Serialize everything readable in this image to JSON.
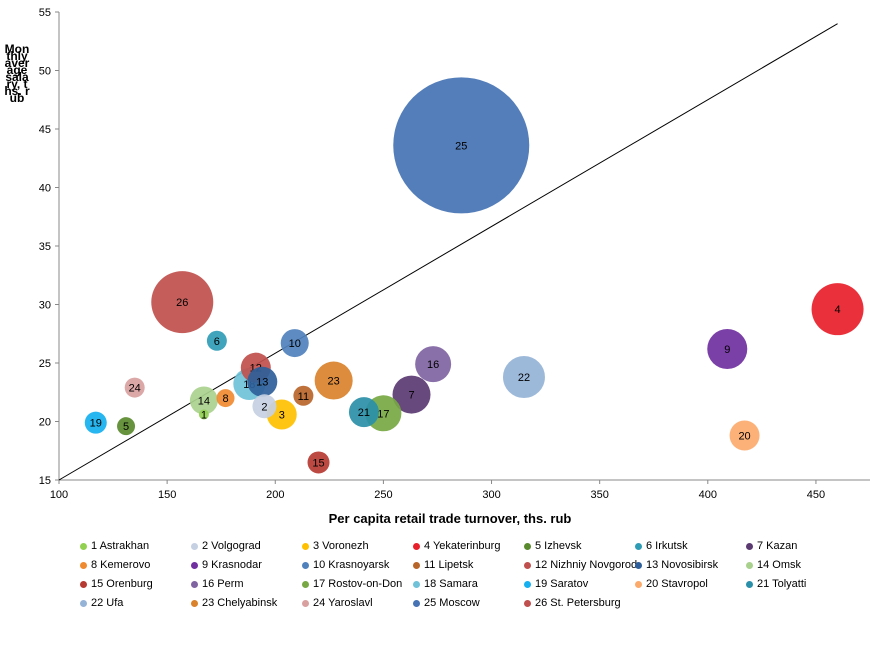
{
  "chart_data": {
    "type": "scatter",
    "title": "",
    "xlabel": "Per capita retail trade turnover, ths. rub",
    "ylabel": "Monthly average salary, ths. rub",
    "xlim": [
      100,
      475
    ],
    "ylim": [
      15,
      55
    ],
    "x_ticks": [
      "100",
      "150",
      "200",
      "250",
      "300",
      "350",
      "400",
      "450"
    ],
    "y_ticks": [
      "15",
      "20",
      "25",
      "30",
      "35",
      "40",
      "45",
      "50",
      "55"
    ],
    "reference_line": {
      "x": [
        100,
        460
      ],
      "y": [
        15,
        54
      ]
    },
    "points": [
      {
        "id": "1",
        "name": "1 Astrakhan",
        "x": 167,
        "y": 20.6,
        "r": 5,
        "color": "#92d050"
      },
      {
        "id": "2",
        "name": "2 Volgograd",
        "x": 195,
        "y": 21.3,
        "r": 12,
        "color": "#c5d0e2"
      },
      {
        "id": "3",
        "name": "3 Voronezh",
        "x": 203,
        "y": 20.6,
        "r": 15,
        "color": "#ffc000"
      },
      {
        "id": "4",
        "name": "4 Yekaterinburg",
        "x": 460,
        "y": 29.6,
        "r": 26,
        "color": "#e8202a"
      },
      {
        "id": "5",
        "name": "5 Izhevsk",
        "x": 131,
        "y": 19.6,
        "r": 9,
        "color": "#5a8a2e"
      },
      {
        "id": "6",
        "name": "6  Irkutsk",
        "x": 173,
        "y": 26.9,
        "r": 10,
        "color": "#2f9cb6"
      },
      {
        "id": "7",
        "name": "7 Kazan",
        "x": 263,
        "y": 22.3,
        "r": 19,
        "color": "#5b3a72"
      },
      {
        "id": "8",
        "name": "8 Kemerovo",
        "x": 177,
        "y": 22.0,
        "r": 9,
        "color": "#f08a30"
      },
      {
        "id": "9",
        "name": "9 Krasnodar",
        "x": 409,
        "y": 26.2,
        "r": 20,
        "color": "#7030a0"
      },
      {
        "id": "10",
        "name": "10 Krasnoyarsk",
        "x": 209,
        "y": 26.7,
        "r": 14,
        "color": "#4f81bd"
      },
      {
        "id": "11",
        "name": "11 Lipetsk",
        "x": 213,
        "y": 22.2,
        "r": 10,
        "color": "#b8652a"
      },
      {
        "id": "12",
        "name": "12 Nizhniy Novgorod",
        "x": 191,
        "y": 24.6,
        "r": 15,
        "color": "#c0504d"
      },
      {
        "id": "13",
        "name": "13 Novosibirsk",
        "x": 194,
        "y": 23.4,
        "r": 15,
        "color": "#2e5f9a"
      },
      {
        "id": "14",
        "name": "14 Omsk",
        "x": 167,
        "y": 21.8,
        "r": 14,
        "color": "#a9d18e"
      },
      {
        "id": "15",
        "name": "15 Orenburg",
        "x": 220,
        "y": 16.5,
        "r": 11,
        "color": "#b63a32"
      },
      {
        "id": "16",
        "name": "16 Perm",
        "x": 273,
        "y": 24.9,
        "r": 18,
        "color": "#8064a2"
      },
      {
        "id": "17",
        "name": "17 Rostov-on-Don",
        "x": 250,
        "y": 20.7,
        "r": 18,
        "color": "#77a843"
      },
      {
        "id": "18",
        "name": "18 Samara",
        "x": 188,
        "y": 23.2,
        "r": 16,
        "color": "#6fc2d8"
      },
      {
        "id": "19",
        "name": "19 Saratov",
        "x": 117,
        "y": 19.9,
        "r": 11,
        "color": "#16b0f0"
      },
      {
        "id": "20",
        "name": "20 Stavropol",
        "x": 417,
        "y": 18.8,
        "r": 15,
        "color": "#fcaa6c"
      },
      {
        "id": "21",
        "name": "21 Tolyatti",
        "x": 241,
        "y": 20.8,
        "r": 15,
        "color": "#2a8fa8"
      },
      {
        "id": "22",
        "name": "22 Ufa",
        "x": 315,
        "y": 23.8,
        "r": 21,
        "color": "#95b3d7"
      },
      {
        "id": "23",
        "name": "23 Chelyabinsk",
        "x": 227,
        "y": 23.5,
        "r": 19,
        "color": "#d9822b"
      },
      {
        "id": "24",
        "name": "24 Yaroslavl",
        "x": 135,
        "y": 22.9,
        "r": 10,
        "color": "#d9a0a0"
      },
      {
        "id": "25",
        "name": "25 Moscow",
        "x": 286,
        "y": 43.6,
        "r": 68,
        "color": "#4573b4"
      },
      {
        "id": "26",
        "name": "26 St. Petersburg",
        "x": 157,
        "y": 30.2,
        "r": 31,
        "color": "#c0504d"
      }
    ]
  }
}
